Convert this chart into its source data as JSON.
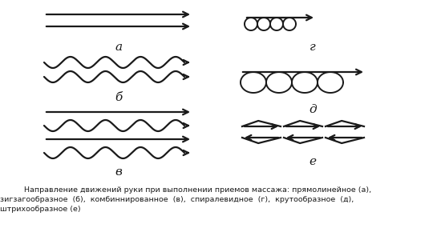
{
  "bg_color": "#ffffff",
  "line_color": "#1a1a1a",
  "caption_line1": "          Направление движений руки при выполнении приемов массажа: прямолинейное (а),",
  "caption_line2": "зигзагообразное  (б),  комбиннированное  (в),  спиралевидное  (г),  крутообразное  (д),",
  "caption_line3": "штрихообразное (е)",
  "label_a": "а",
  "label_b": "б",
  "label_v": "в",
  "label_g": "г",
  "label_d": "д",
  "label_e": "е",
  "figw": 5.55,
  "figh": 3.05,
  "dpi": 100
}
